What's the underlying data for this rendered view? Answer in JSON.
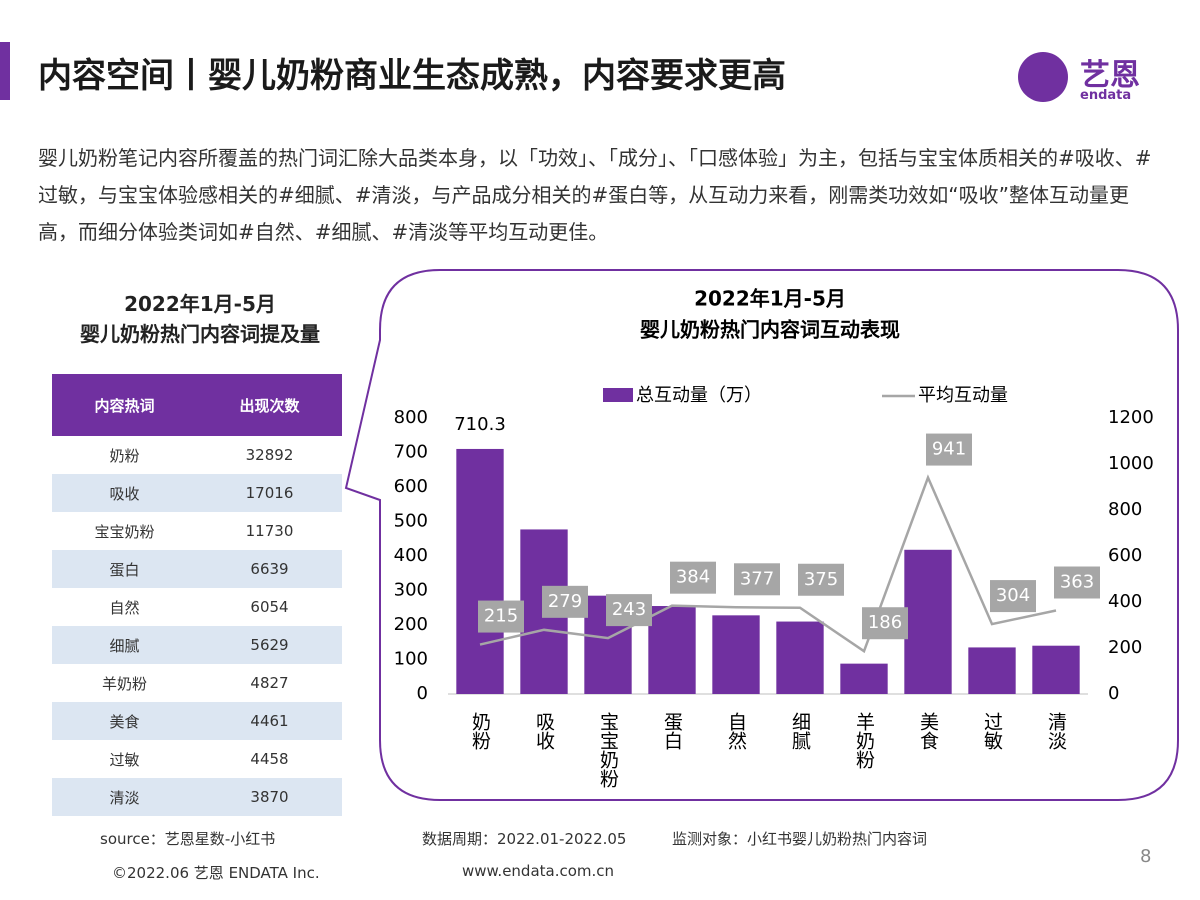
{
  "header": {
    "title": "内容空间丨婴儿奶粉商业生态成熟，内容要求更高",
    "logo": "艺恩",
    "logo_sub": "endata"
  },
  "paragraph": "婴儿奶粉笔记内容所覆盖的热门词汇除大品类本身，以「功效」、「成分」、「口感体验」为主，包括与宝宝体质相关的#吸收、#过敏，与宝宝体验感相关的#细腻、#清淡，与产品成分相关的#蛋白等，从互动力来看，刚需类功效如“吸收”整体互动量更高，而细分体验类词如#自然、#细腻、#清淡等平均互动更佳。",
  "table": {
    "title": "2022年1月-5月",
    "subtitle": "婴儿奶粉热门内容词提及量",
    "header": [
      "内容热词",
      "出现次数"
    ],
    "rows": [
      [
        "奶粉",
        32892
      ],
      [
        "吸收",
        17016
      ],
      [
        "宝宝奶粉",
        11730
      ],
      [
        "蛋白",
        6639
      ],
      [
        "自然",
        6054
      ],
      [
        "细腻",
        5629
      ],
      [
        "羊奶粉",
        4827
      ],
      [
        "美食",
        4461
      ],
      [
        "过敏",
        4458
      ],
      [
        "清淡",
        3870
      ]
    ]
  },
  "chart_data": {
    "type": "bar_line",
    "title": "2022年1月-5月",
    "subtitle": "婴儿奶粉热门内容词互动表现",
    "categories": [
      "奶粉",
      "吸收",
      "宝宝奶粉",
      "蛋白",
      "自然",
      "细腻",
      "羊奶粉",
      "美食",
      "过敏",
      "清淡"
    ],
    "series": [
      {
        "name": "总互动量（万）",
        "type": "bar",
        "color": "#7030a0",
        "values": [
          710.3,
          477,
          285,
          255,
          228,
          210,
          88,
          418,
          135,
          140
        ],
        "value_labels": [
          "710.3",
          null,
          null,
          null,
          null,
          null,
          null,
          null,
          null,
          null
        ]
      },
      {
        "name": "平均互动量",
        "type": "line",
        "axis": "y2",
        "color": "#a6a6a6",
        "values": [
          215,
          279,
          243,
          384,
          377,
          375,
          186,
          941,
          304,
          363
        ]
      }
    ],
    "ylim": [
      0,
      800
    ],
    "yticks": [
      0,
      100,
      200,
      300,
      400,
      500,
      600,
      700,
      800
    ],
    "y2lim": [
      0,
      1200
    ],
    "y2ticks": [
      0,
      200,
      400,
      600,
      800,
      1000,
      1200
    ],
    "grid": false
  },
  "footer": {
    "source": "source：艺恩星数-小红书",
    "period": "数据周期：2022.01-2022.05",
    "target": "监测对象：小红书婴儿奶粉热门内容词",
    "copyright": "©2022.06 艺恩 ENDATA Inc.",
    "url": "www.endata.com.cn",
    "page": "8"
  }
}
